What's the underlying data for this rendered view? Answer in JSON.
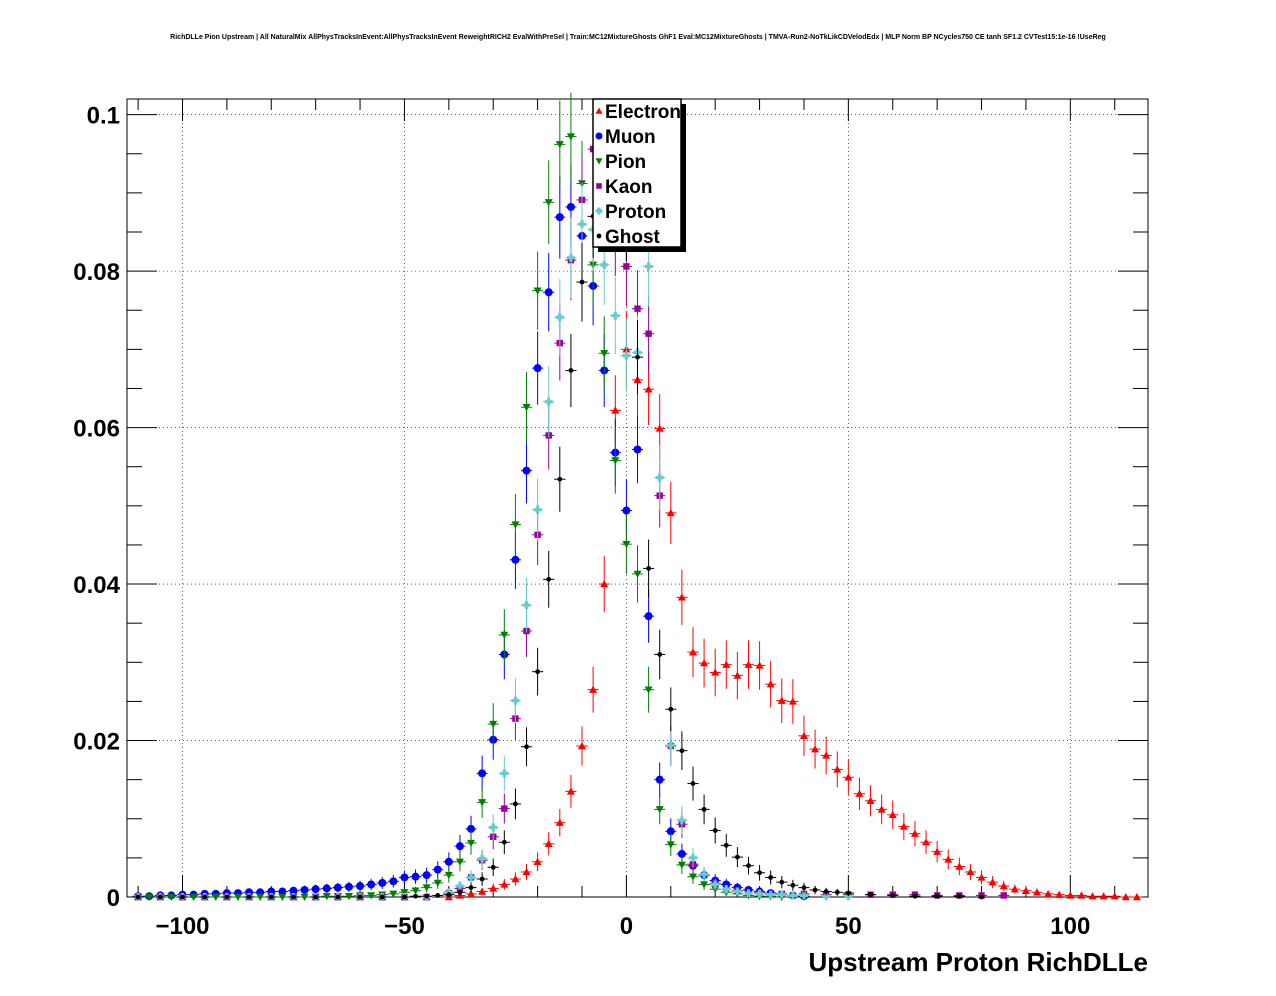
{
  "chart_data": {
    "type": "scatter",
    "title": "RichDLLe Pion Upstream | All NaturalMix AllPhysTracksInEvent:AllPhysTracksInEvent ReweightRICH2 EvalWithPreSel | Train:MC12MixtureGhosts GhF1 Eval:MC12MixtureGhosts | TMVA-Run2-NoTkLikCDVelodEdx | MLP Norm BP NCycles750 CE tanh SF1.2 CVTest15:1e-16 !UseReg",
    "xlabel": "Upstream Proton RichDLLe",
    "ylabel": "",
    "xlim": [
      -112.5,
      117.5
    ],
    "ylim": [
      0,
      0.102
    ],
    "xticks": [
      -100,
      -50,
      0,
      50,
      100
    ],
    "xtick_labels": [
      "−100",
      "−50",
      "0",
      "50",
      "100"
    ],
    "yticks": [
      0,
      0.02,
      0.04,
      0.06,
      0.08,
      0.1
    ],
    "ytick_labels": [
      "0",
      "0.02",
      "0.04",
      "0.06",
      "0.08",
      "0.1"
    ],
    "grid": true,
    "legend_position": "top-center",
    "series": [
      {
        "name": "Electron",
        "color": "#ff0000",
        "marker": "triangle-up",
        "x": [
          -110,
          -105,
          -100,
          -95,
          -90,
          -85,
          -80,
          -75,
          -70,
          -65,
          -60,
          -55,
          -50,
          -45,
          -40,
          -37.5,
          -35,
          -32.5,
          -30,
          -27.5,
          -25,
          -22.5,
          -20,
          -17.5,
          -15,
          -12.5,
          -10,
          -7.5,
          -5,
          -2.5,
          0,
          2.5,
          5,
          7.5,
          10,
          12.5,
          15,
          17.5,
          20,
          22.5,
          25,
          27.5,
          30,
          32.5,
          35,
          37.5,
          40,
          42.5,
          45,
          47.5,
          50,
          52.5,
          55,
          57.5,
          60,
          62.5,
          65,
          67.5,
          70,
          72.5,
          75,
          77.5,
          80,
          82.5,
          85,
          87.5,
          90,
          92.5,
          95,
          97.5,
          100,
          102.5,
          105,
          107.5,
          110,
          112.5,
          115
        ],
        "y": [
          0,
          0,
          0,
          0,
          0,
          0,
          0,
          0,
          0,
          0,
          0,
          0,
          0,
          0,
          0,
          0.0002,
          0.0004,
          0.0007,
          0.0011,
          0.0016,
          0.0023,
          0.0032,
          0.0045,
          0.0068,
          0.0095,
          0.0135,
          0.0193,
          0.0265,
          0.04,
          0.0622,
          0.07,
          0.0661,
          0.0649,
          0.0599,
          0.0491,
          0.0383,
          0.0313,
          0.0299,
          0.0287,
          0.0297,
          0.0283,
          0.0297,
          0.0296,
          0.0272,
          0.0251,
          0.025,
          0.0206,
          0.0189,
          0.0181,
          0.0163,
          0.0153,
          0.0132,
          0.0123,
          0.0112,
          0.0105,
          0.009,
          0.0081,
          0.007,
          0.0058,
          0.0048,
          0.0039,
          0.0032,
          0.0025,
          0.0019,
          0.0014,
          0.001,
          0.0008,
          0.0006,
          0.0004,
          0.0003,
          0.0002,
          0.0002,
          0.0001,
          0.0001,
          0.0001,
          0,
          0
        ]
      },
      {
        "name": "Muon",
        "color": "#0000ff",
        "marker": "circle",
        "x": [
          -110,
          -107.5,
          -105,
          -102.5,
          -100,
          -97.5,
          -95,
          -92.5,
          -90,
          -87.5,
          -85,
          -82.5,
          -80,
          -77.5,
          -75,
          -72.5,
          -70,
          -67.5,
          -65,
          -62.5,
          -60,
          -57.5,
          -55,
          -52.5,
          -50,
          -47.5,
          -45,
          -42.5,
          -40,
          -37.5,
          -35,
          -32.5,
          -30,
          -27.5,
          -25,
          -22.5,
          -20,
          -17.5,
          -15,
          -12.5,
          -10,
          -7.5,
          -5,
          -2.5,
          0,
          2.5,
          5,
          7.5,
          10,
          12.5,
          15,
          17.5,
          20,
          22.5,
          25,
          27.5,
          30,
          32.5,
          35,
          37.5,
          40
        ],
        "y": [
          0.0001,
          0.0001,
          0.0002,
          0.0002,
          0.0003,
          0.0003,
          0.0004,
          0.0004,
          0.0005,
          0.0005,
          0.0006,
          0.0006,
          0.0007,
          0.0007,
          0.0008,
          0.0009,
          0.001,
          0.0011,
          0.0012,
          0.0013,
          0.0014,
          0.0016,
          0.0018,
          0.002,
          0.0025,
          0.0026,
          0.0028,
          0.0035,
          0.0045,
          0.0065,
          0.0087,
          0.0158,
          0.0201,
          0.031,
          0.0431,
          0.0545,
          0.0676,
          0.0773,
          0.0869,
          0.0882,
          0.0845,
          0.0781,
          0.0673,
          0.0568,
          0.0494,
          0.0572,
          0.0359,
          0.015,
          0.0084,
          0.0055,
          0.004,
          0.0028,
          0.0021,
          0.0016,
          0.0012,
          0.0009,
          0.0007,
          0.0005,
          0.0003,
          0.0002,
          0.0001
        ]
      },
      {
        "name": "Pion",
        "color": "#008000",
        "marker": "triangle-down",
        "x": [
          -110,
          -107.5,
          -105,
          -102.5,
          -100,
          -97.5,
          -95,
          -92.5,
          -90,
          -87.5,
          -85,
          -82.5,
          -80,
          -77.5,
          -75,
          -72.5,
          -70,
          -67.5,
          -65,
          -62.5,
          -60,
          -57.5,
          -55,
          -52.5,
          -50,
          -47.5,
          -45,
          -42.5,
          -40,
          -37.5,
          -35,
          -32.5,
          -30,
          -27.5,
          -25,
          -22.5,
          -20,
          -17.5,
          -15,
          -12.5,
          -10,
          -7.5,
          -5,
          -2.5,
          0,
          2.5,
          5,
          7.5,
          10,
          12.5,
          15,
          17.5,
          20,
          22.5,
          25,
          27.5,
          30,
          32.5,
          35
        ],
        "y": [
          0,
          0,
          0,
          0,
          0,
          0,
          0,
          0,
          0,
          0,
          0,
          0,
          0,
          0,
          0,
          0,
          0,
          0.0001,
          0.0001,
          0.0001,
          0.0002,
          0.0002,
          0.0003,
          0.0004,
          0.0006,
          0.0008,
          0.0012,
          0.0018,
          0.0028,
          0.0045,
          0.0069,
          0.0121,
          0.0221,
          0.0335,
          0.0476,
          0.0626,
          0.0775,
          0.0888,
          0.0962,
          0.0972,
          0.0912,
          0.0808,
          0.0695,
          0.0558,
          0.0451,
          0.0413,
          0.0265,
          0.0112,
          0.0067,
          0.0041,
          0.0026,
          0.0016,
          0.001,
          0.0006,
          0.0004,
          0.0002,
          0.0001,
          0.0001,
          0
        ]
      },
      {
        "name": "Kaon",
        "color": "#990099",
        "marker": "square",
        "x": [
          -110,
          -105,
          -100,
          -95,
          -90,
          -85,
          -80,
          -75,
          -70,
          -65,
          -60,
          -55,
          -50,
          -45,
          -40,
          -37.5,
          -35,
          -32.5,
          -30,
          -27.5,
          -25,
          -22.5,
          -20,
          -17.5,
          -15,
          -12.5,
          -10,
          -7.5,
          -5,
          -2.5,
          0,
          2.5,
          5,
          7.5,
          10,
          12.5,
          15,
          20,
          25,
          30,
          35,
          40,
          45,
          50,
          55,
          60,
          65,
          70,
          75,
          80,
          85
        ],
        "y": [
          0,
          0,
          0,
          0,
          0,
          0,
          0,
          0,
          0,
          0,
          0,
          0,
          0,
          0,
          0.0005,
          0.0011,
          0.0025,
          0.0047,
          0.0077,
          0.0113,
          0.0228,
          0.034,
          0.0463,
          0.059,
          0.0708,
          0.0814,
          0.0891,
          0.0956,
          0.0879,
          0.0846,
          0.0806,
          0.0752,
          0.072,
          0.0513,
          0.0193,
          0.0093,
          0.0042,
          0.0017,
          0.0008,
          0.0006,
          0.0004,
          0.0004,
          0.0003,
          0.0003,
          0.0003,
          0.0003,
          0.0003,
          0.0002,
          0.0002,
          0.0002,
          0.0002
        ]
      },
      {
        "name": "Proton",
        "color": "#66cccc",
        "marker": "cross",
        "x": [
          -110,
          -105,
          -100,
          -95,
          -90,
          -85,
          -80,
          -75,
          -70,
          -65,
          -60,
          -55,
          -50,
          -45,
          -40,
          -37.5,
          -35,
          -32.5,
          -30,
          -27.5,
          -25,
          -22.5,
          -20,
          -17.5,
          -15,
          -12.5,
          -10,
          -7.5,
          -5,
          -2.5,
          0,
          2.5,
          5,
          7.5,
          10,
          12.5,
          15,
          17.5,
          20,
          22.5,
          25,
          27.5,
          30,
          32.5,
          35,
          37.5,
          40,
          45,
          50
        ],
        "y": [
          0,
          0,
          0,
          0,
          0,
          0,
          0,
          0,
          0,
          0,
          0,
          0,
          0,
          0,
          0.0006,
          0.0014,
          0.0025,
          0.0049,
          0.0089,
          0.0158,
          0.0251,
          0.0373,
          0.0495,
          0.0633,
          0.0741,
          0.0817,
          0.086,
          0.0853,
          0.0808,
          0.0743,
          0.0692,
          0.0696,
          0.0806,
          0.0536,
          0.0194,
          0.0098,
          0.005,
          0.0029,
          0.0016,
          0.001,
          0.0007,
          0.0005,
          0.0004,
          0.0003,
          0.0003,
          0.0002,
          0.0002,
          0.0001,
          0.0001
        ]
      },
      {
        "name": "Ghost",
        "color": "#000000",
        "marker": "star",
        "x": [
          -110,
          -105,
          -100,
          -95,
          -90,
          -85,
          -80,
          -75,
          -70,
          -65,
          -60,
          -55,
          -50,
          -47.5,
          -45,
          -42.5,
          -40,
          -37.5,
          -35,
          -32.5,
          -30,
          -27.5,
          -25,
          -22.5,
          -20,
          -17.5,
          -15,
          -12.5,
          -10,
          -7.5,
          -5,
          -2.5,
          0,
          2.5,
          5,
          7.5,
          10,
          12.5,
          15,
          17.5,
          20,
          22.5,
          25,
          27.5,
          30,
          32.5,
          35,
          37.5,
          40,
          42.5,
          45,
          47.5,
          50,
          55,
          60,
          65,
          70,
          75,
          80
        ],
        "y": [
          0,
          0,
          0,
          0,
          0,
          0,
          0,
          0,
          0,
          0,
          0,
          0,
          0,
          0.0001,
          0.0001,
          0.0002,
          0.0003,
          0.0006,
          0.0012,
          0.0023,
          0.0038,
          0.007,
          0.0119,
          0.0192,
          0.0288,
          0.0406,
          0.0534,
          0.0673,
          0.0786,
          0.087,
          0.0905,
          0.0898,
          0.0866,
          0.069,
          0.042,
          0.031,
          0.024,
          0.0187,
          0.0145,
          0.0112,
          0.0085,
          0.0066,
          0.0051,
          0.004,
          0.0031,
          0.0025,
          0.0019,
          0.0015,
          0.0012,
          0.0009,
          0.0007,
          0.0006,
          0.0005,
          0.0003,
          0.0002,
          0.0001,
          0.0001,
          0.0001,
          0
        ]
      }
    ]
  }
}
